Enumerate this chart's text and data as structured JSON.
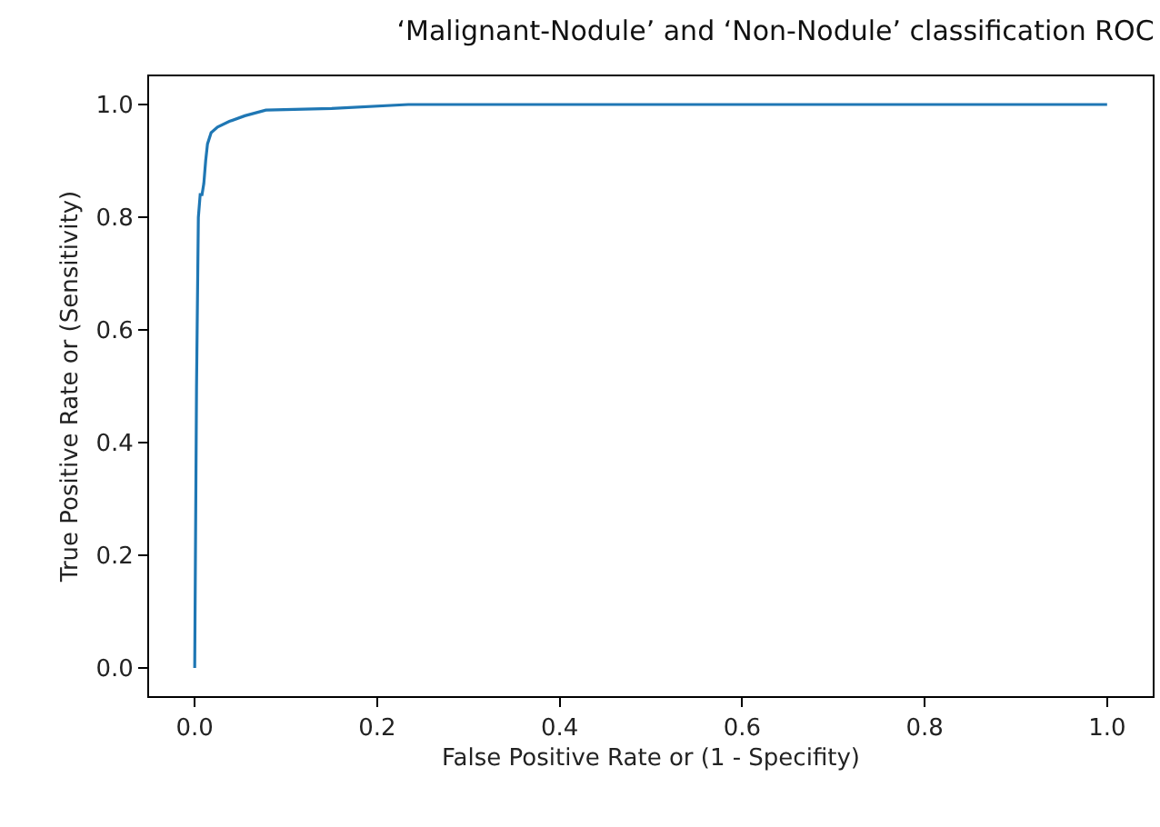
{
  "chart_data": {
    "type": "line",
    "title": "‘Malignant-Nodule’ and ‘Non-Nodule’ classification ROC",
    "xlabel": "False Positive Rate or (1 - Specifity)",
    "ylabel": "True Positive Rate or (Sensitivity)",
    "x": [
      0,
      0.002,
      0.004,
      0.006,
      0.008,
      0.01,
      0.012,
      0.014,
      0.018,
      0.025,
      0.038,
      0.055,
      0.078,
      0.15,
      0.234,
      1.0
    ],
    "series": [
      {
        "color": "#1f77b4",
        "values": [
          0,
          0.5,
          0.8,
          0.84,
          0.84,
          0.86,
          0.9,
          0.93,
          0.95,
          0.96,
          0.97,
          0.98,
          0.99,
          0.993,
          1.0,
          1.0
        ]
      }
    ],
    "xlim": [
      -0.05,
      1.05
    ],
    "ylim": [
      -0.05,
      1.05
    ],
    "xticks": [
      {
        "value": 0,
        "label": "0.0"
      },
      0.2,
      0.4,
      0.6,
      0.8,
      {
        "value": 1,
        "label": "1.0"
      }
    ],
    "yticks": [
      {
        "value": 0,
        "label": "0.0"
      },
      0.2,
      0.4,
      0.6,
      0.8,
      {
        "value": 1,
        "label": "1.0"
      }
    ],
    "legend": false,
    "line_style": "solid",
    "marker": "none"
  }
}
